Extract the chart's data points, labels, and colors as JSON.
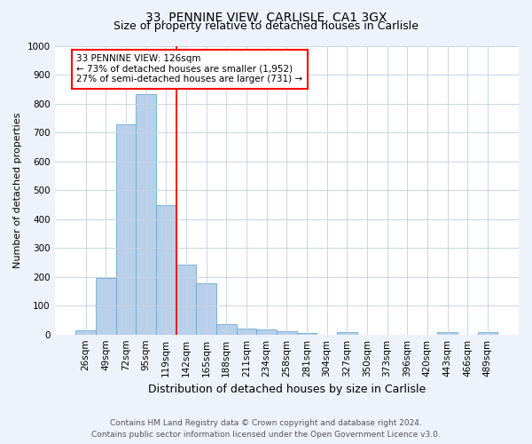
{
  "title_line1": "33, PENNINE VIEW, CARLISLE, CA1 3GX",
  "title_line2": "Size of property relative to detached houses in Carlisle",
  "xlabel": "Distribution of detached houses by size in Carlisle",
  "ylabel": "Number of detached properties",
  "categories": [
    "26sqm",
    "49sqm",
    "72sqm",
    "95sqm",
    "119sqm",
    "142sqm",
    "165sqm",
    "188sqm",
    "211sqm",
    "234sqm",
    "258sqm",
    "281sqm",
    "304sqm",
    "327sqm",
    "350sqm",
    "373sqm",
    "396sqm",
    "420sqm",
    "443sqm",
    "466sqm",
    "489sqm"
  ],
  "values": [
    13,
    195,
    728,
    833,
    448,
    243,
    178,
    35,
    22,
    17,
    12,
    6,
    0,
    9,
    0,
    0,
    0,
    0,
    9,
    0,
    9
  ],
  "bar_color": "#b8d0ea",
  "bar_edge_color": "#6aaad4",
  "vline_x_index": 4.5,
  "vline_color": "red",
  "annotation_text": "33 PENNINE VIEW: 126sqm\n← 73% of detached houses are smaller (1,952)\n27% of semi-detached houses are larger (731) →",
  "annotation_box_color": "white",
  "annotation_box_edge_color": "red",
  "ylim": [
    0,
    1000
  ],
  "yticks": [
    0,
    100,
    200,
    300,
    400,
    500,
    600,
    700,
    800,
    900,
    1000
  ],
  "footer_line1": "Contains HM Land Registry data © Crown copyright and database right 2024.",
  "footer_line2": "Contains public sector information licensed under the Open Government Licence v3.0.",
  "background_color": "#eef2fb",
  "plot_background": "white",
  "grid_color": "#c8d4e8",
  "title1_fontsize": 10,
  "title2_fontsize": 9,
  "xlabel_fontsize": 9,
  "ylabel_fontsize": 8,
  "tick_fontsize": 7.5,
  "footer_fontsize": 6.5,
  "ann_fontsize": 7.5
}
